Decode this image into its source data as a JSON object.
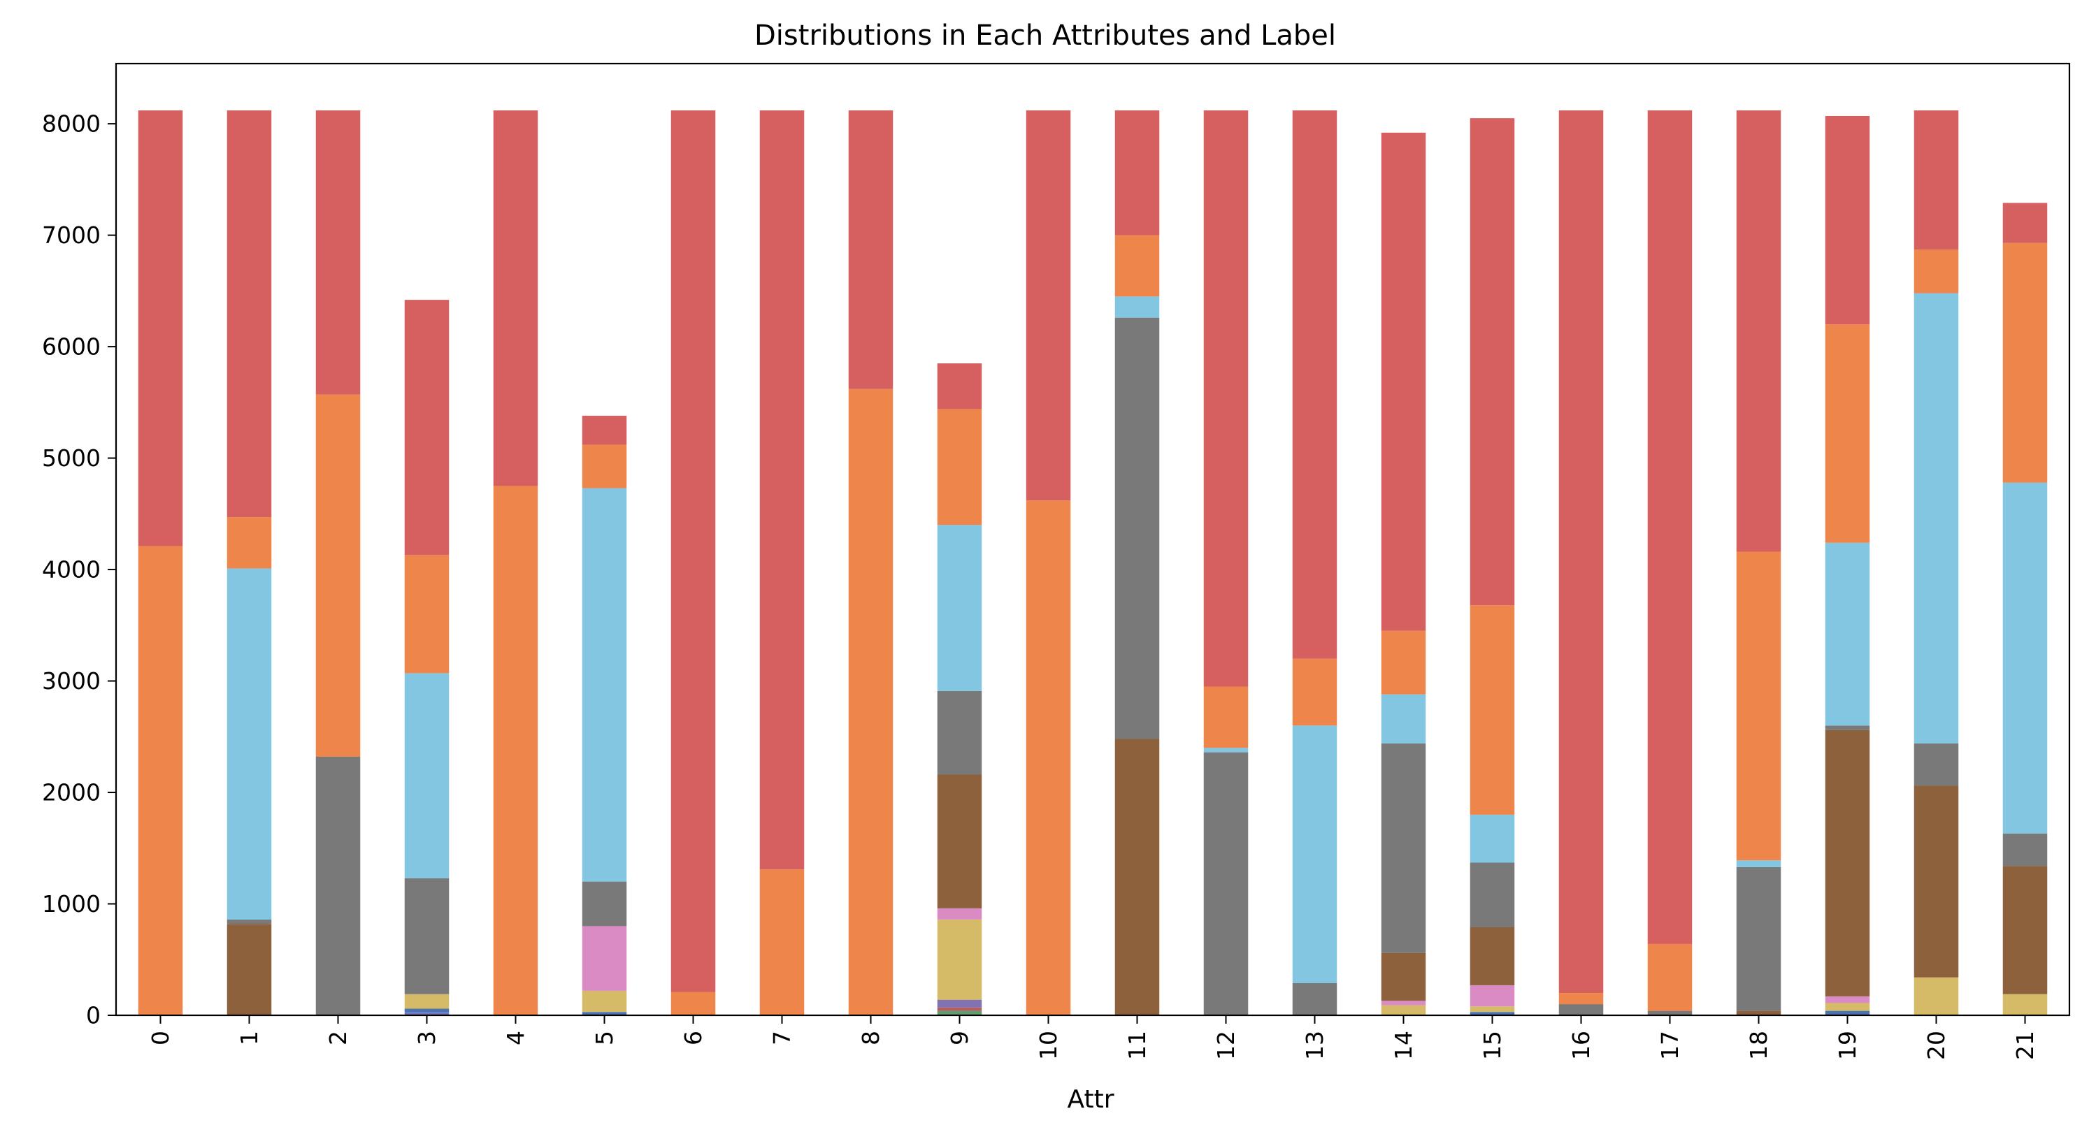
{
  "chart_data": {
    "type": "bar",
    "stacked": true,
    "title": "Distributions in Each Attributes and Label",
    "xlabel": "Attr",
    "ylabel": "",
    "ylim": [
      0,
      8540
    ],
    "yticks": [
      0,
      1000,
      2000,
      3000,
      4000,
      5000,
      6000,
      7000,
      8000
    ],
    "categories": [
      "0",
      "1",
      "2",
      "3",
      "4",
      "5",
      "6",
      "7",
      "8",
      "9",
      "10",
      "11",
      "12",
      "13",
      "14",
      "15",
      "16",
      "17",
      "18",
      "19",
      "20",
      "21"
    ],
    "grid": false,
    "legend": "none",
    "colors": [
      "#5f9e6e",
      "#b55d60",
      "#8172b2",
      "#4878cf",
      "#d65f5f",
      "#6acc65",
      "#4c72b0",
      "#d5bb67",
      "#ee854a",
      "#c44e52",
      "#da8bc3",
      "#8c613c",
      "#797979",
      "#82c6e2",
      "#ee854a",
      "#d65f5f"
    ],
    "series": [
      {
        "values": [
          0,
          0,
          0,
          0,
          0,
          0,
          0,
          0,
          0,
          40,
          0,
          0,
          0,
          0,
          0,
          0,
          0,
          0,
          0,
          0,
          0,
          0
        ]
      },
      {
        "values": [
          0,
          0,
          0,
          0,
          0,
          0,
          0,
          0,
          0,
          30,
          0,
          0,
          0,
          0,
          0,
          0,
          0,
          0,
          0,
          0,
          0,
          0
        ]
      },
      {
        "values": [
          0,
          0,
          0,
          20,
          0,
          0,
          0,
          0,
          0,
          70,
          0,
          0,
          0,
          0,
          0,
          0,
          0,
          0,
          0,
          0,
          0,
          0
        ]
      },
      {
        "values": [
          0,
          0,
          0,
          10,
          0,
          0,
          0,
          0,
          0,
          0,
          0,
          0,
          0,
          0,
          0,
          0,
          0,
          0,
          0,
          0,
          0,
          0
        ]
      },
      {
        "values": [
          0,
          0,
          0,
          0,
          0,
          0,
          0,
          0,
          0,
          0,
          0,
          0,
          0,
          0,
          0,
          0,
          0,
          0,
          0,
          0,
          0,
          0
        ]
      },
      {
        "values": [
          0,
          0,
          0,
          0,
          0,
          0,
          0,
          0,
          0,
          0,
          0,
          0,
          0,
          0,
          0,
          0,
          0,
          0,
          0,
          0,
          0,
          0
        ]
      },
      {
        "values": [
          0,
          0,
          0,
          30,
          0,
          30,
          0,
          0,
          0,
          0,
          0,
          0,
          0,
          0,
          0,
          30,
          0,
          0,
          0,
          40,
          0,
          0
        ]
      },
      {
        "values": [
          0,
          0,
          0,
          130,
          0,
          190,
          0,
          0,
          0,
          720,
          0,
          0,
          0,
          0,
          90,
          50,
          0,
          0,
          0,
          70,
          340,
          190
        ]
      },
      {
        "values": [
          0,
          0,
          0,
          0,
          0,
          0,
          0,
          0,
          0,
          0,
          0,
          0,
          0,
          0,
          0,
          0,
          0,
          0,
          0,
          0,
          0,
          0
        ]
      },
      {
        "values": [
          0,
          0,
          0,
          0,
          0,
          0,
          0,
          0,
          0,
          0,
          0,
          0,
          0,
          0,
          0,
          0,
          0,
          0,
          0,
          0,
          0,
          0
        ]
      },
      {
        "values": [
          0,
          0,
          0,
          0,
          0,
          580,
          0,
          0,
          0,
          100,
          0,
          0,
          0,
          0,
          40,
          190,
          0,
          0,
          0,
          60,
          0,
          0
        ]
      },
      {
        "values": [
          0,
          820,
          0,
          0,
          0,
          0,
          0,
          0,
          0,
          1200,
          0,
          2480,
          0,
          0,
          430,
          520,
          0,
          0,
          40,
          2390,
          1720,
          1150
        ]
      },
      {
        "values": [
          0,
          40,
          2320,
          1040,
          0,
          400,
          0,
          0,
          0,
          750,
          0,
          3780,
          2360,
          290,
          1880,
          580,
          100,
          40,
          1290,
          40,
          380,
          290
        ]
      },
      {
        "values": [
          0,
          3150,
          0,
          1840,
          0,
          3530,
          0,
          0,
          0,
          1490,
          0,
          190,
          40,
          2310,
          440,
          430,
          0,
          0,
          60,
          1640,
          4040,
          3150
        ]
      },
      {
        "values": [
          4210,
          460,
          3250,
          1060,
          4750,
          390,
          210,
          1310,
          5620,
          1040,
          4620,
          550,
          550,
          600,
          570,
          1880,
          100,
          600,
          2770,
          1960,
          390,
          2150
        ]
      },
      {
        "values": [
          3910,
          3650,
          2550,
          2290,
          3370,
          260,
          7910,
          6810,
          2500,
          410,
          3500,
          1120,
          5170,
          4920,
          4470,
          4370,
          7920,
          7480,
          3960,
          1870,
          1250,
          360
        ]
      }
    ]
  }
}
